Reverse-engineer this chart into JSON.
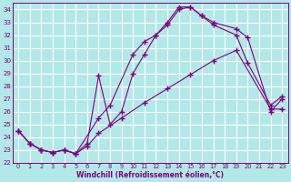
{
  "xlabel": "Windchill (Refroidissement éolien,°C)",
  "bg_color": "#b2e8e8",
  "line_color": "#800080",
  "grid_color": "#ffffff",
  "xlim": [
    -0.5,
    23.5
  ],
  "ylim": [
    22,
    34.5
  ],
  "yticks": [
    22,
    23,
    24,
    25,
    26,
    27,
    28,
    29,
    30,
    31,
    32,
    33,
    34
  ],
  "xticks": [
    0,
    1,
    2,
    3,
    4,
    5,
    6,
    7,
    8,
    9,
    10,
    11,
    12,
    13,
    14,
    15,
    16,
    17,
    18,
    19,
    20,
    21,
    22,
    23
  ],
  "line1_x": [
    0,
    1,
    2,
    3,
    4,
    5,
    6,
    7,
    9,
    11,
    13,
    15,
    17,
    19,
    22,
    23
  ],
  "line1_y": [
    24.5,
    23.5,
    23.0,
    22.8,
    23.0,
    22.7,
    23.3,
    24.3,
    25.5,
    26.7,
    27.8,
    28.9,
    30.0,
    30.8,
    26.2,
    26.2
  ],
  "line2_x": [
    0,
    1,
    2,
    3,
    4,
    5,
    6,
    7,
    8,
    9,
    10,
    11,
    12,
    13,
    14,
    15,
    16,
    17,
    19,
    20,
    22,
    23
  ],
  "line2_y": [
    24.5,
    23.5,
    23.0,
    22.8,
    23.0,
    22.7,
    23.5,
    28.8,
    25.0,
    26.0,
    29.0,
    30.5,
    32.0,
    32.8,
    34.0,
    34.2,
    33.5,
    32.8,
    32.0,
    29.8,
    26.5,
    27.2
  ],
  "line3_x": [
    0,
    1,
    2,
    3,
    4,
    5,
    7,
    8,
    10,
    11,
    12,
    13,
    14,
    15,
    16,
    17,
    19,
    20,
    22,
    23
  ],
  "line3_y": [
    24.5,
    23.5,
    23.0,
    22.8,
    23.0,
    22.7,
    25.5,
    26.5,
    30.5,
    31.5,
    32.0,
    33.0,
    34.2,
    34.2,
    33.5,
    33.0,
    32.5,
    31.8,
    26.0,
    27.0
  ]
}
